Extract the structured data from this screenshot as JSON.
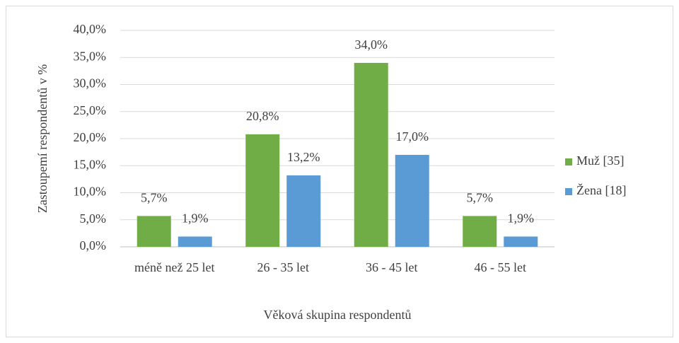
{
  "chart_data": {
    "type": "bar",
    "categories": [
      "méně než 25 let",
      "26 - 35 let",
      "36 - 45 let",
      "46 - 55 let"
    ],
    "series": [
      {
        "name": "Muž [35]",
        "color": "#70ad47",
        "values": [
          5.7,
          20.8,
          34.0,
          5.7
        ],
        "value_labels": [
          "5,7%",
          "20,8%",
          "34,0%",
          "5,7%"
        ]
      },
      {
        "name": "Žena [18]",
        "color": "#5b9bd5",
        "values": [
          1.9,
          13.2,
          17.0,
          1.9
        ],
        "value_labels": [
          "1,9%",
          "13,2%",
          "17,0%",
          "1,9%"
        ]
      }
    ],
    "ylim": [
      0,
      40
    ],
    "yticks": [
      {
        "value": 0,
        "label": "0,0%"
      },
      {
        "value": 5,
        "label": "5,0%"
      },
      {
        "value": 10,
        "label": "10,0%"
      },
      {
        "value": 15,
        "label": "15,0%"
      },
      {
        "value": 20,
        "label": "20,0%"
      },
      {
        "value": 25,
        "label": "25,0%"
      },
      {
        "value": 30,
        "label": "30,0%"
      },
      {
        "value": 35,
        "label": "35,0%"
      },
      {
        "value": 40,
        "label": "40,0%"
      }
    ],
    "xlabel": "Věková skupina respondentů",
    "ylabel": "Zastoupemí respondentů v %",
    "legend": "right"
  }
}
